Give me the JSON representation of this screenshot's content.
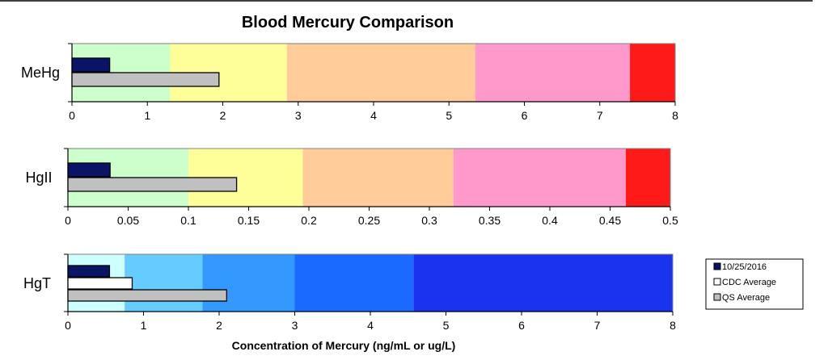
{
  "chart_data": {
    "type": "bar",
    "title": "Blood Mercury Comparison",
    "xlabel": "Concentration of Mercury (ng/mL or ug/L)",
    "legend": {
      "placement": "right",
      "entries": [
        {
          "name": "10/25/2016",
          "color": "#0a1466"
        },
        {
          "name": "CDC Average",
          "color": "#ffffff"
        },
        {
          "name": "QS Average",
          "color": "#c0c0c0"
        }
      ]
    },
    "panels": [
      {
        "label": "MeHg",
        "xlim": [
          0,
          8
        ],
        "ticks": [
          0,
          1,
          2,
          3,
          4,
          5,
          6,
          7,
          8
        ],
        "tick_labels": [
          "0",
          "1",
          "2",
          "3",
          "4",
          "5",
          "6",
          "7",
          "8"
        ],
        "bands": [
          {
            "from": 0,
            "to": 1.3,
            "color": "#ccffcc"
          },
          {
            "from": 1.3,
            "to": 2.85,
            "color": "#ffff99"
          },
          {
            "from": 2.85,
            "to": 5.35,
            "color": "#ffcc99"
          },
          {
            "from": 5.35,
            "to": 7.4,
            "color": "#ff99cc"
          },
          {
            "from": 7.4,
            "to": 8,
            "color": "#ff1a1a"
          }
        ],
        "bars": [
          {
            "series": "10/25/2016",
            "value": 0.5
          },
          {
            "series": "QS Average",
            "value": 1.95
          }
        ]
      },
      {
        "label": "HgII",
        "xlim": [
          0,
          0.5
        ],
        "ticks": [
          0,
          0.05,
          0.1,
          0.15,
          0.2,
          0.25,
          0.3,
          0.35,
          0.4,
          0.45,
          0.5
        ],
        "tick_labels": [
          "0",
          "0.05",
          "0.1",
          "0.15",
          "0.2",
          "0.25",
          "0.3",
          "0.35",
          "0.4",
          "0.45",
          "0.5"
        ],
        "bands": [
          {
            "from": 0,
            "to": 0.1,
            "color": "#ccffcc"
          },
          {
            "from": 0.1,
            "to": 0.195,
            "color": "#ffff99"
          },
          {
            "from": 0.195,
            "to": 0.32,
            "color": "#ffcc99"
          },
          {
            "from": 0.32,
            "to": 0.463,
            "color": "#ff99cc"
          },
          {
            "from": 0.463,
            "to": 0.5,
            "color": "#ff1a1a"
          }
        ],
        "bars": [
          {
            "series": "10/25/2016",
            "value": 0.035
          },
          {
            "series": "QS Average",
            "value": 0.14
          }
        ]
      },
      {
        "label": "HgT",
        "xlim": [
          0,
          8
        ],
        "ticks": [
          0,
          1,
          2,
          3,
          4,
          5,
          6,
          7,
          8
        ],
        "tick_labels": [
          "0",
          "1",
          "2",
          "3",
          "4",
          "5",
          "6",
          "7",
          "8"
        ],
        "bands": [
          {
            "from": 0,
            "to": 0.75,
            "color": "#ccffff"
          },
          {
            "from": 0.75,
            "to": 1.78,
            "color": "#66ccff"
          },
          {
            "from": 1.78,
            "to": 3.0,
            "color": "#3399ff"
          },
          {
            "from": 3.0,
            "to": 4.57,
            "color": "#1a6aff"
          },
          {
            "from": 4.57,
            "to": 8,
            "color": "#1a33ee"
          }
        ],
        "bars": [
          {
            "series": "10/25/2016",
            "value": 0.55
          },
          {
            "series": "CDC Average",
            "value": 0.85
          },
          {
            "series": "QS Average",
            "value": 2.1
          }
        ]
      }
    ]
  }
}
